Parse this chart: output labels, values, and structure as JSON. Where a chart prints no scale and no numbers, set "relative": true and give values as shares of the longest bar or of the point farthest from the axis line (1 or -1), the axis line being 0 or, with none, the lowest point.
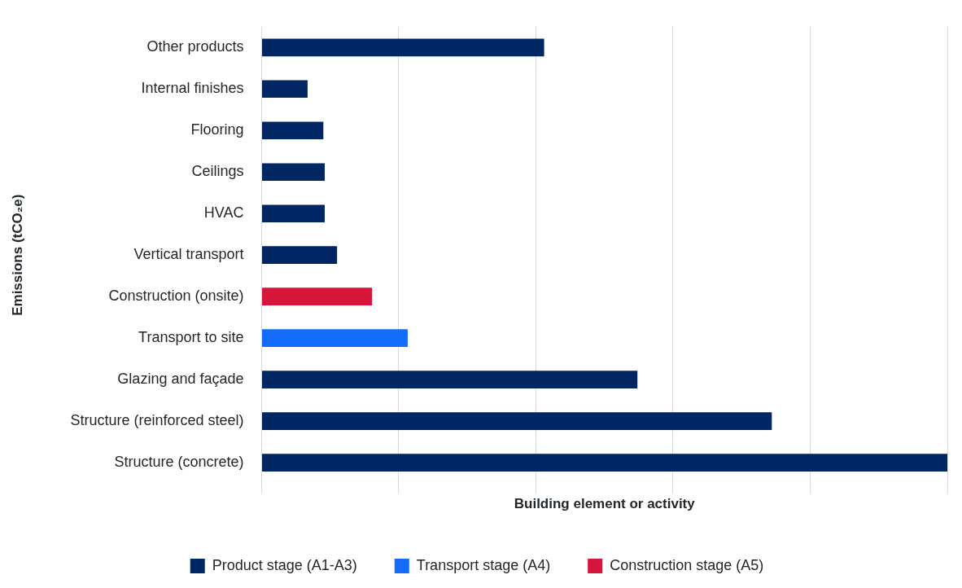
{
  "chart_data": {
    "type": "bar",
    "orientation": "horizontal",
    "relative": true,
    "xlabel": "Building element or activity",
    "ylabel": "Emissions (tCO₂e)",
    "categories": [
      "Other products",
      "Internal finishes",
      "Flooring",
      "Ceilings",
      "HVAC",
      "Vertical transport",
      "Construction (onsite)",
      "Transport to site",
      "Glazing and façade",
      "Structure (reinforced steel)",
      "Structure (concrete)"
    ],
    "series": [
      {
        "name": "Product stage (A1-A3)",
        "color": "#002664",
        "values": [
          0.412,
          0.067,
          0.09,
          0.092,
          0.092,
          0.11,
          null,
          null,
          0.548,
          0.744,
          1
        ]
      },
      {
        "name": "Transport stage (A4)",
        "color": "#146cfd",
        "values": [
          null,
          null,
          null,
          null,
          null,
          null,
          null,
          0.213,
          null,
          null,
          null
        ]
      },
      {
        "name": "Construction stage (A5)",
        "color": "#d7153a",
        "values": [
          null,
          null,
          null,
          null,
          null,
          null,
          0.161,
          null,
          null,
          null,
          null
        ]
      }
    ],
    "grid": "x",
    "legend": "bottom"
  }
}
